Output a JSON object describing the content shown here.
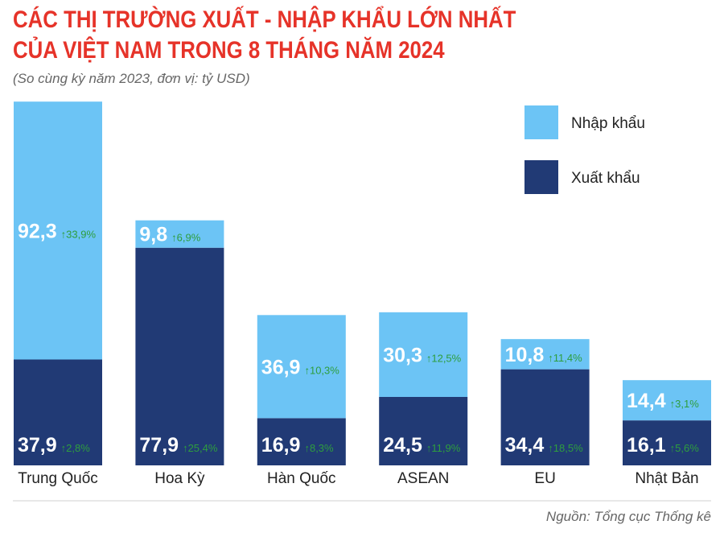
{
  "header": {
    "title_line1": "CÁC THỊ TRƯỜNG XUẤT - NHẬP KHẨU LỚN NHẤT",
    "title_line2": "CỦA VIỆT NAM TRONG 8 THÁNG NĂM 2024",
    "subtitle": "(So cùng kỳ năm 2023, đơn vị: tỷ USD)"
  },
  "footer": {
    "source": "Nguồn: Tổng cục Thống kê"
  },
  "colors": {
    "import": "#6cc4f5",
    "export": "#213a75",
    "title": "#e63329",
    "growth": "#2e9e3e"
  },
  "chart_data": {
    "type": "bar",
    "stacked": true,
    "title": "CÁC THỊ TRƯỜNG XUẤT - NHẬP KHẨU LỚN NHẤT CỦA VIỆT NAM TRONG 8 THÁNG NĂM 2024",
    "subtitle": "(So cùng kỳ năm 2023, đơn vị: tỷ USD)",
    "unit": "tỷ USD",
    "legend": "top-right",
    "categories": [
      "Trung Quốc",
      "Hoa Kỳ",
      "Hàn Quốc",
      "ASEAN",
      "EU",
      "Nhật Bản"
    ],
    "series": [
      {
        "name": "Xuất khẩu",
        "values": [
          37.9,
          77.9,
          16.9,
          24.5,
          34.4,
          16.1
        ],
        "labels": [
          "37,9",
          "77,9",
          "16,9",
          "24,5",
          "34,4",
          "16,1"
        ],
        "growth": [
          "2,8%",
          "25,4%",
          "8,3%",
          "11,9%",
          "18,5%",
          "5,6%"
        ]
      },
      {
        "name": "Nhập khẩu",
        "values": [
          92.3,
          9.8,
          36.9,
          30.3,
          10.8,
          14.4
        ],
        "labels": [
          "92,3",
          "9,8",
          "36,9",
          "30,3",
          "10,8",
          "14,4"
        ],
        "growth": [
          "33,9%",
          "6,9%",
          "10,3%",
          "12,5%",
          "11,4%",
          "3,1%"
        ]
      }
    ]
  }
}
